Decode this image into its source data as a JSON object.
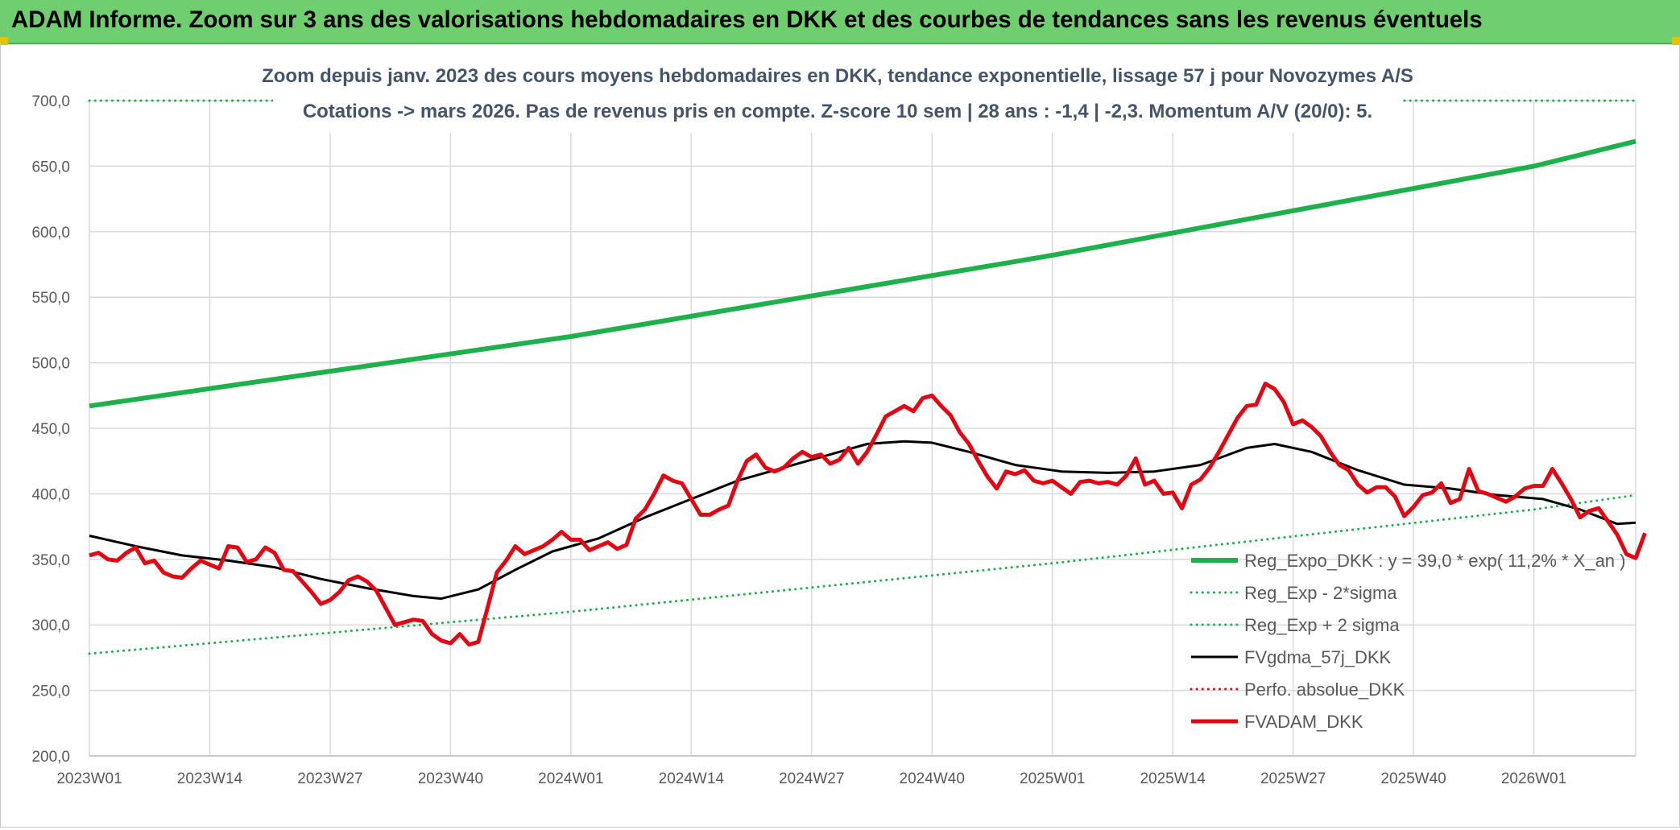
{
  "banner": {
    "title": "ADAM Informe. Zoom sur 3 ans des valorisations hebdomadaires en DKK et des courbes de tendances sans les revenus éventuels"
  },
  "chart_data": {
    "type": "line",
    "title_line1": "Zoom depuis janv. 2023 des cours moyens hebdomadaires en DKK, tendance exponentielle, lissage 57 j pour Novozymes A/S",
    "title_line2": "Cotations -> mars 2026. Pas de revenus pris en compte. Z-score 10 sem | 28 ans : -1,4 | -2,3. Momentum A/V (20/0): 5.",
    "ylim": [
      200,
      700
    ],
    "y_ticks": [
      "200,0",
      "250,0",
      "300,0",
      "350,0",
      "400,0",
      "450,0",
      "500,0",
      "550,0",
      "600,0",
      "650,0",
      "700,0"
    ],
    "x_ticks": [
      "2023W01",
      "2023W14",
      "2023W27",
      "2023W40",
      "2024W01",
      "2024W14",
      "2024W27",
      "2024W40",
      "2025W01",
      "2025W14",
      "2025W27",
      "2025W40",
      "2026W01"
    ],
    "x_weeks": [
      0,
      13,
      26,
      39,
      52,
      65,
      78,
      91,
      104,
      117,
      130,
      143,
      156
    ],
    "x_max_week": 167,
    "grid": "vertical and horizontal",
    "legend_position": "bottom-right",
    "series": [
      {
        "name": "Reg_Expo_DKK : y = 39,0 * exp( 11,2% *  X_an )",
        "color": "#1eb04a",
        "style": "solid",
        "width": 6,
        "points": [
          [
            0,
            467
          ],
          [
            52,
            520
          ],
          [
            104,
            582
          ],
          [
            156,
            650
          ],
          [
            167,
            669
          ]
        ]
      },
      {
        "name": "Reg_Exp - 2*sigma",
        "color": "#1eb04a",
        "style": "dotted",
        "width": 3,
        "points": [
          [
            0,
            278
          ],
          [
            52,
            310
          ],
          [
            104,
            347
          ],
          [
            156,
            388
          ],
          [
            167,
            399
          ]
        ]
      },
      {
        "name": "Reg_Exp + 2 sigma",
        "color": "#1eb04a",
        "style": "dotted",
        "width": 3,
        "points": [
          [
            0,
            700
          ],
          [
            167,
            700
          ]
        ]
      },
      {
        "name": "FVgdma_57j_DKK",
        "color": "#000000",
        "style": "solid",
        "width": 3,
        "points": [
          [
            0,
            368
          ],
          [
            5,
            360
          ],
          [
            10,
            353
          ],
          [
            15,
            349
          ],
          [
            20,
            344
          ],
          [
            25,
            335
          ],
          [
            30,
            328
          ],
          [
            35,
            322
          ],
          [
            38,
            320
          ],
          [
            42,
            327
          ],
          [
            46,
            342
          ],
          [
            50,
            356
          ],
          [
            55,
            366
          ],
          [
            60,
            382
          ],
          [
            65,
            396
          ],
          [
            70,
            410
          ],
          [
            75,
            420
          ],
          [
            80,
            430
          ],
          [
            84,
            438
          ],
          [
            88,
            440
          ],
          [
            91,
            439
          ],
          [
            95,
            432
          ],
          [
            100,
            422
          ],
          [
            105,
            417
          ],
          [
            110,
            416
          ],
          [
            115,
            417
          ],
          [
            120,
            422
          ],
          [
            125,
            435
          ],
          [
            128,
            438
          ],
          [
            132,
            432
          ],
          [
            137,
            418
          ],
          [
            142,
            407
          ],
          [
            147,
            404
          ],
          [
            152,
            399
          ],
          [
            157,
            396
          ],
          [
            161,
            388
          ],
          [
            165,
            377
          ],
          [
            167,
            378
          ]
        ]
      },
      {
        "name": "Perfo. absolue_DKK",
        "color": "#e30613",
        "style": "dotted",
        "width": 3,
        "points": []
      },
      {
        "name": "FVADAM_DKK",
        "color": "#e30613",
        "style": "solid",
        "width": 5,
        "points": [
          [
            0,
            353
          ],
          [
            1,
            355
          ],
          [
            2,
            350
          ],
          [
            3,
            349
          ],
          [
            4,
            355
          ],
          [
            5,
            359
          ],
          [
            6,
            347
          ],
          [
            7,
            349
          ],
          [
            8,
            340
          ],
          [
            9,
            337
          ],
          [
            10,
            336
          ],
          [
            11,
            343
          ],
          [
            12,
            349
          ],
          [
            13,
            346
          ],
          [
            14,
            343
          ],
          [
            15,
            360
          ],
          [
            16,
            359
          ],
          [
            17,
            348
          ],
          [
            18,
            350
          ],
          [
            19,
            359
          ],
          [
            20,
            355
          ],
          [
            21,
            342
          ],
          [
            22,
            341
          ],
          [
            23,
            333
          ],
          [
            24,
            325
          ],
          [
            25,
            316
          ],
          [
            26,
            319
          ],
          [
            27,
            325
          ],
          [
            28,
            334
          ],
          [
            29,
            337
          ],
          [
            30,
            333
          ],
          [
            31,
            326
          ],
          [
            32,
            313
          ],
          [
            33,
            300
          ],
          [
            34,
            302
          ],
          [
            35,
            304
          ],
          [
            36,
            303
          ],
          [
            37,
            293
          ],
          [
            38,
            288
          ],
          [
            39,
            286
          ],
          [
            40,
            293
          ],
          [
            41,
            285
          ],
          [
            42,
            287
          ],
          [
            43,
            313
          ],
          [
            44,
            340
          ],
          [
            45,
            349
          ],
          [
            46,
            360
          ],
          [
            47,
            354
          ],
          [
            48,
            357
          ],
          [
            49,
            360
          ],
          [
            50,
            365
          ],
          [
            51,
            371
          ],
          [
            52,
            365
          ],
          [
            53,
            365
          ],
          [
            54,
            357
          ],
          [
            55,
            360
          ],
          [
            56,
            363
          ],
          [
            57,
            358
          ],
          [
            58,
            361
          ],
          [
            59,
            381
          ],
          [
            60,
            388
          ],
          [
            61,
            400
          ],
          [
            62,
            414
          ],
          [
            63,
            410
          ],
          [
            64,
            408
          ],
          [
            65,
            396
          ],
          [
            66,
            384
          ],
          [
            67,
            384
          ],
          [
            68,
            388
          ],
          [
            69,
            391
          ],
          [
            70,
            410
          ],
          [
            71,
            425
          ],
          [
            72,
            430
          ],
          [
            73,
            420
          ],
          [
            74,
            417
          ],
          [
            75,
            420
          ],
          [
            76,
            427
          ],
          [
            77,
            432
          ],
          [
            78,
            428
          ],
          [
            79,
            430
          ],
          [
            80,
            423
          ],
          [
            81,
            426
          ],
          [
            82,
            435
          ],
          [
            83,
            423
          ],
          [
            84,
            432
          ],
          [
            85,
            445
          ],
          [
            86,
            459
          ],
          [
            87,
            463
          ],
          [
            88,
            467
          ],
          [
            89,
            463
          ],
          [
            90,
            473
          ],
          [
            91,
            475
          ],
          [
            92,
            467
          ],
          [
            93,
            460
          ],
          [
            94,
            447
          ],
          [
            95,
            438
          ],
          [
            96,
            425
          ],
          [
            97,
            413
          ],
          [
            98,
            404
          ],
          [
            99,
            417
          ],
          [
            100,
            415
          ],
          [
            101,
            418
          ],
          [
            102,
            410
          ],
          [
            103,
            408
          ],
          [
            104,
            410
          ],
          [
            105,
            405
          ],
          [
            106,
            400
          ],
          [
            107,
            409
          ],
          [
            108,
            410
          ],
          [
            109,
            408
          ],
          [
            110,
            409
          ],
          [
            111,
            407
          ],
          [
            112,
            414
          ],
          [
            113,
            427
          ],
          [
            114,
            407
          ],
          [
            115,
            410
          ],
          [
            116,
            400
          ],
          [
            117,
            401
          ],
          [
            118,
            389
          ],
          [
            119,
            407
          ],
          [
            120,
            411
          ],
          [
            121,
            420
          ],
          [
            122,
            432
          ],
          [
            123,
            445
          ],
          [
            124,
            458
          ],
          [
            125,
            467
          ],
          [
            126,
            468
          ],
          [
            127,
            484
          ],
          [
            128,
            480
          ],
          [
            129,
            470
          ],
          [
            130,
            453
          ],
          [
            131,
            456
          ],
          [
            132,
            451
          ],
          [
            133,
            444
          ],
          [
            134,
            432
          ],
          [
            135,
            422
          ],
          [
            136,
            418
          ],
          [
            137,
            407
          ],
          [
            138,
            401
          ],
          [
            139,
            405
          ],
          [
            140,
            405
          ],
          [
            141,
            398
          ],
          [
            142,
            383
          ],
          [
            143,
            390
          ],
          [
            144,
            399
          ],
          [
            145,
            401
          ],
          [
            146,
            408
          ],
          [
            147,
            393
          ],
          [
            148,
            396
          ],
          [
            149,
            419
          ],
          [
            150,
            402
          ],
          [
            151,
            400
          ],
          [
            152,
            397
          ],
          [
            153,
            394
          ],
          [
            154,
            398
          ],
          [
            155,
            404
          ],
          [
            156,
            406
          ],
          [
            157,
            406
          ],
          [
            158,
            419
          ],
          [
            159,
            408
          ],
          [
            160,
            396
          ],
          [
            161,
            382
          ],
          [
            162,
            387
          ],
          [
            163,
            389
          ],
          [
            164,
            379
          ],
          [
            165,
            369
          ],
          [
            166,
            354
          ],
          [
            167,
            351
          ],
          [
            168,
            370
          ]
        ]
      }
    ]
  }
}
